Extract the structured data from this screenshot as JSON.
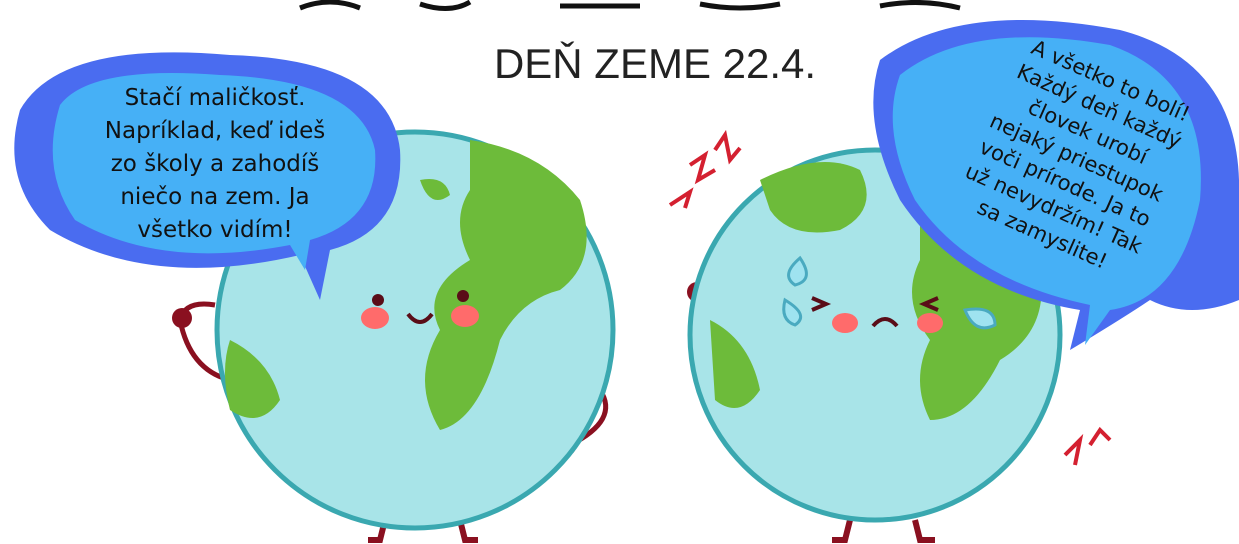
{
  "header": {
    "subtitle": "DEŇ ZEME 22.4."
  },
  "left_bubble": {
    "lines": [
      "Stačí maličkosť.",
      "Napríklad, keď ideš",
      "zo školy a zahodíš",
      "niečo na zem. Ja",
      "všetko vidím!"
    ]
  },
  "right_bubble": {
    "lines": [
      "A všetko to bolí!",
      "Každý deň každý",
      "človek urobí",
      "nejaký priestupok",
      "voči prírode. Ja to",
      "už nevydržím! Tak",
      "sa zamyslite!"
    ]
  }
}
